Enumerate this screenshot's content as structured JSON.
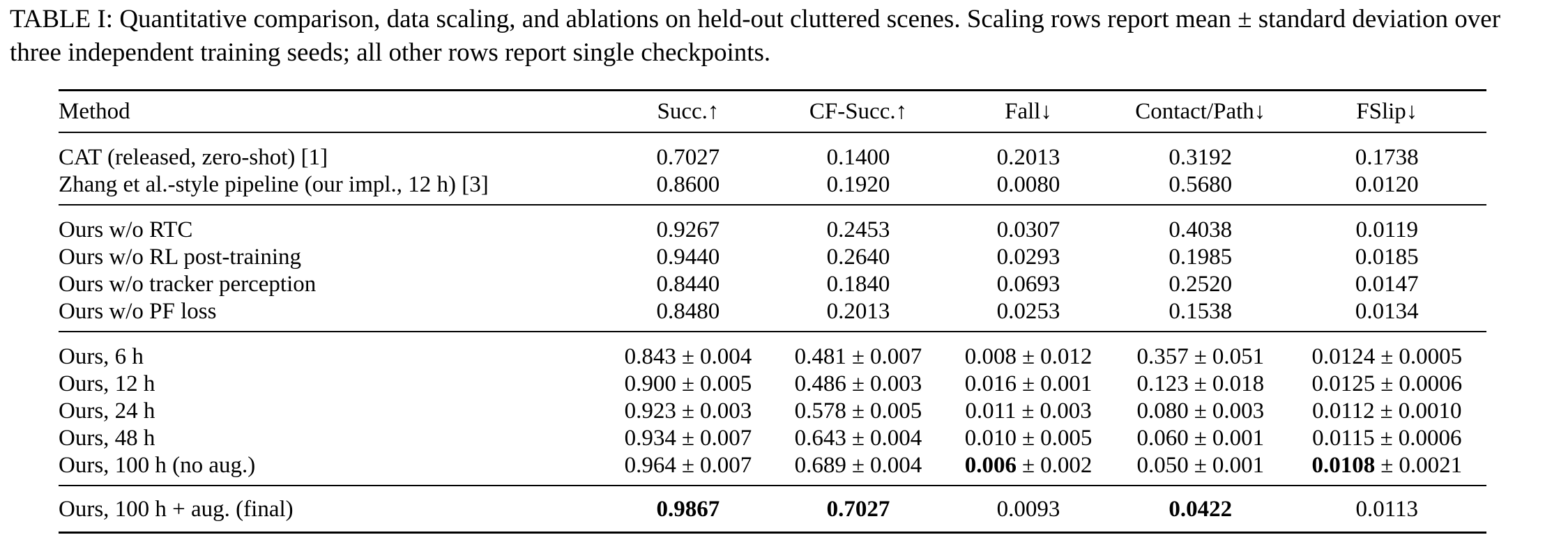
{
  "caption": "TABLE I: Quantitative comparison, data scaling, and ablations on held-out cluttered scenes. Scaling rows report mean ± standard deviation over three independent training seeds; all other rows report single checkpoints.",
  "headers": [
    "Method",
    "Succ.↑",
    "CF-Succ.↑",
    "Fall↓",
    "Contact/Path↓",
    "FSlip↓"
  ],
  "groups": [
    {
      "rows": [
        {
          "method": "CAT (released, zero-shot) [1]",
          "cells": [
            "0.7027",
            "0.1400",
            "0.2013",
            "0.3192",
            "0.1738"
          ]
        },
        {
          "method": "Zhang et al.-style pipeline (our impl., 12 h) [3]",
          "cells": [
            "0.8600",
            "0.1920",
            "0.0080",
            "0.5680",
            "0.0120"
          ]
        }
      ]
    },
    {
      "rows": [
        {
          "method": "Ours w/o RTC",
          "cells": [
            "0.9267",
            "0.2453",
            "0.0307",
            "0.4038",
            "0.0119"
          ]
        },
        {
          "method": "Ours w/o RL post-training",
          "cells": [
            "0.9440",
            "0.2640",
            "0.0293",
            "0.1985",
            "0.0185"
          ]
        },
        {
          "method": "Ours w/o tracker perception",
          "cells": [
            "0.8440",
            "0.1840",
            "0.0693",
            "0.2520",
            "0.0147"
          ]
        },
        {
          "method": "Ours w/o PF loss",
          "cells": [
            "0.8480",
            "0.2013",
            "0.0253",
            "0.1538",
            "0.0134"
          ]
        }
      ]
    },
    {
      "rows": [
        {
          "method": "Ours, 6 h",
          "cells": [
            "0.843 ± 0.004",
            "0.481 ± 0.007",
            "0.008 ± 0.012",
            "0.357 ± 0.051",
            "0.0124 ± 0.0005"
          ]
        },
        {
          "method": "Ours, 12 h",
          "cells": [
            "0.900 ± 0.005",
            "0.486 ± 0.003",
            "0.016 ± 0.001",
            "0.123 ± 0.018",
            "0.0125 ± 0.0006"
          ]
        },
        {
          "method": "Ours, 24 h",
          "cells": [
            "0.923 ± 0.003",
            "0.578 ± 0.005",
            "0.011 ± 0.003",
            "0.080 ± 0.003",
            "0.0112 ± 0.0010"
          ]
        },
        {
          "method": "Ours, 48 h",
          "cells": [
            "0.934 ± 0.007",
            "0.643 ± 0.004",
            "0.010 ± 0.005",
            "0.060 ± 0.001",
            "0.0115 ± 0.0006"
          ]
        },
        {
          "method": "Ours, 100 h (no aug.)",
          "cells": [
            "0.964 ± 0.007",
            "0.689 ± 0.004",
            "0.006 ± 0.002",
            "0.050 ± 0.001",
            "0.0108 ± 0.0021"
          ],
          "bold": [
            2,
            4
          ]
        }
      ]
    },
    {
      "rows": [
        {
          "method": "Ours, 100 h + aug. (final)",
          "cells": [
            "0.9867",
            "0.7027",
            "0.0093",
            "0.0422",
            "0.0113"
          ],
          "bold": [
            0,
            1,
            3
          ]
        }
      ]
    }
  ]
}
